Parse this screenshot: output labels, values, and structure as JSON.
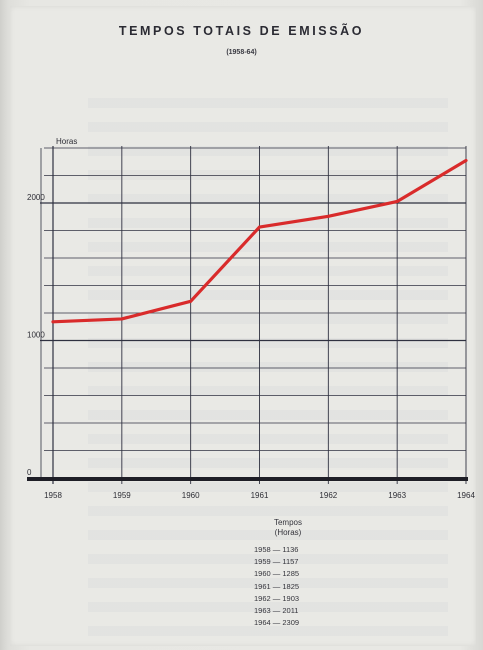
{
  "chart_data": {
    "type": "line",
    "title": "TEMPOS TOTAIS DE EMISSÃO",
    "subtitle": "(1958-64)",
    "ylabel": "Horas",
    "xlabel": "",
    "x": [
      1958,
      1959,
      1960,
      1961,
      1962,
      1963,
      1964
    ],
    "x_tick_labels": [
      "1958",
      "1959",
      "1960",
      "1961",
      "1962",
      "1963",
      "1964"
    ],
    "y_tick_labels": [
      "0",
      "1000",
      "2000"
    ],
    "ylim": [
      0,
      2400
    ],
    "grid": true,
    "series": [
      {
        "values": [
          1136,
          1157,
          1285,
          1825,
          1903,
          2011,
          2309
        ],
        "color": "#d92b2b"
      }
    ],
    "table": {
      "header_line1": "Tempos",
      "header_line2": "(Horas)",
      "rows": [
        {
          "label": "1958 — 1136"
        },
        {
          "label": "1959 — 1157"
        },
        {
          "label": "1960 — 1285"
        },
        {
          "label": "1961 — 1825"
        },
        {
          "label": "1962 — 1903"
        },
        {
          "label": "1963 — 2011"
        },
        {
          "label": "1964 — 2309"
        }
      ]
    }
  },
  "colors": {
    "grid": "#2f3140",
    "axis": "#1e1e26",
    "line": "#d92b2b",
    "paper": "#e9e9e5"
  }
}
